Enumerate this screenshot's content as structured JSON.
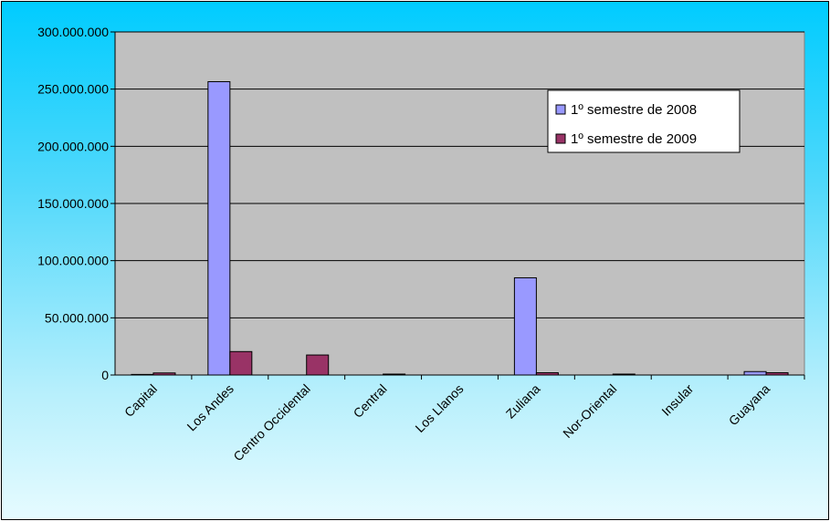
{
  "chart_data": {
    "type": "bar",
    "title": "",
    "xlabel": "",
    "ylabel": "",
    "categories": [
      "Capital",
      "Los Andes",
      "Centro Occidental",
      "Central",
      "Los Llanos",
      "Zuliana",
      "Nor-Oriental",
      "Insular",
      "Guayana"
    ],
    "series": [
      {
        "name": "1º semestre de 2008",
        "color": "#9999ff",
        "values": [
          500000,
          256500000,
          0,
          0,
          0,
          85000000,
          0,
          0,
          3000000
        ]
      },
      {
        "name": "1º semestre de 2009",
        "color": "#993366",
        "values": [
          1800000,
          20500000,
          17500000,
          800000,
          0,
          2000000,
          800000,
          0,
          2000000
        ]
      }
    ],
    "ylim": [
      0,
      300000000
    ],
    "yticks": [
      0,
      50000000,
      100000000,
      150000000,
      200000000,
      250000000,
      300000000
    ],
    "ytick_labels": [
      "0",
      "50.000.000",
      "100.000.000",
      "150.000.000",
      "200.000.000",
      "250.000.000",
      "300.000.000"
    ],
    "grid": true,
    "legend_position": "top-right",
    "plot_background": "#c0c0c0"
  }
}
